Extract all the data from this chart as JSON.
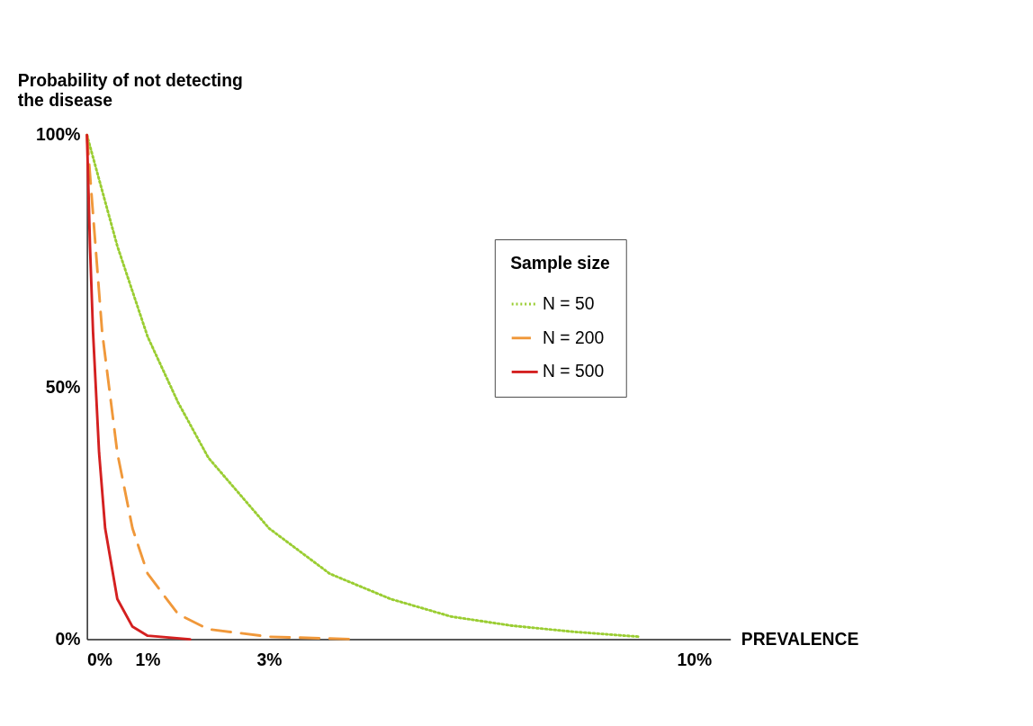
{
  "chart_data": {
    "type": "line",
    "ylabel": "Probability of not detecting\nthe disease",
    "xlabel": "PREVALENCE",
    "legend_title": "Sample size",
    "legend": "top right",
    "grid": false,
    "xlim": [
      0,
      10.6
    ],
    "xticks": [
      {
        "value": 0,
        "label": "0%"
      },
      {
        "value": 1,
        "label": "1%"
      },
      {
        "value": 3,
        "label": "3%"
      },
      {
        "value": 10,
        "label": "10%"
      }
    ],
    "ylim": [
      0,
      100
    ],
    "yticks": [
      {
        "value": 0,
        "label": "0%"
      },
      {
        "value": 50,
        "label": "50%"
      },
      {
        "value": 100,
        "label": "100%"
      }
    ],
    "series": [
      {
        "name": "N = 50",
        "color": "#9acd32",
        "line_style": "dotted",
        "x": [
          0,
          0.5,
          1,
          1.5,
          2,
          3,
          4,
          5,
          6,
          7,
          8,
          9.1
        ],
        "values": [
          100,
          78,
          60,
          47,
          36,
          22,
          13,
          8,
          4.5,
          2.7,
          1.5,
          0.5
        ]
      },
      {
        "name": "N = 200",
        "color": "#f0983a",
        "line_style": "dashed",
        "x": [
          0,
          0.25,
          0.5,
          0.75,
          1,
          1.5,
          2,
          3,
          4.4
        ],
        "values": [
          100,
          61,
          37,
          22,
          13,
          5,
          2,
          0.5,
          0
        ]
      },
      {
        "name": "N = 500",
        "color": "#d42020",
        "line_style": "solid",
        "x": [
          0,
          0.05,
          0.1,
          0.2,
          0.3,
          0.5,
          0.75,
          1,
          1.7
        ],
        "values": [
          100,
          78,
          61,
          37,
          22,
          8,
          2.5,
          0.7,
          0
        ]
      }
    ]
  }
}
